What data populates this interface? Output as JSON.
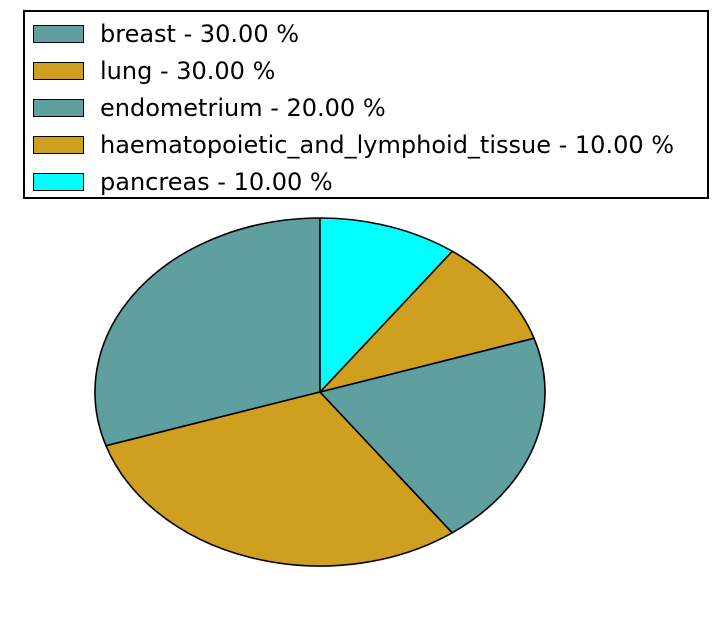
{
  "chart_data": {
    "type": "pie",
    "title": "",
    "labels": [
      "breast",
      "lung",
      "endometrium",
      "haematopoietic_and_lymphoid_tissue",
      "pancreas"
    ],
    "values": [
      30.0,
      30.0,
      20.0,
      10.0,
      10.0
    ],
    "value_unit": "%",
    "colors": [
      "#5f9fa0",
      "#cf9f20",
      "#5f9fa0",
      "#cf9f20",
      "#00ffff"
    ],
    "edge_color": "#000000",
    "start_angle_deg": 90,
    "direction": "counterclockwise",
    "legend_position": "upper-left",
    "legend_entries": [
      "breast - 30.00 %",
      "lung - 30.00 %",
      "endometrium - 20.00 %",
      "haematopoietic_and_lymphoid_tissue - 10.00 %",
      "pancreas - 10.00 %"
    ]
  }
}
